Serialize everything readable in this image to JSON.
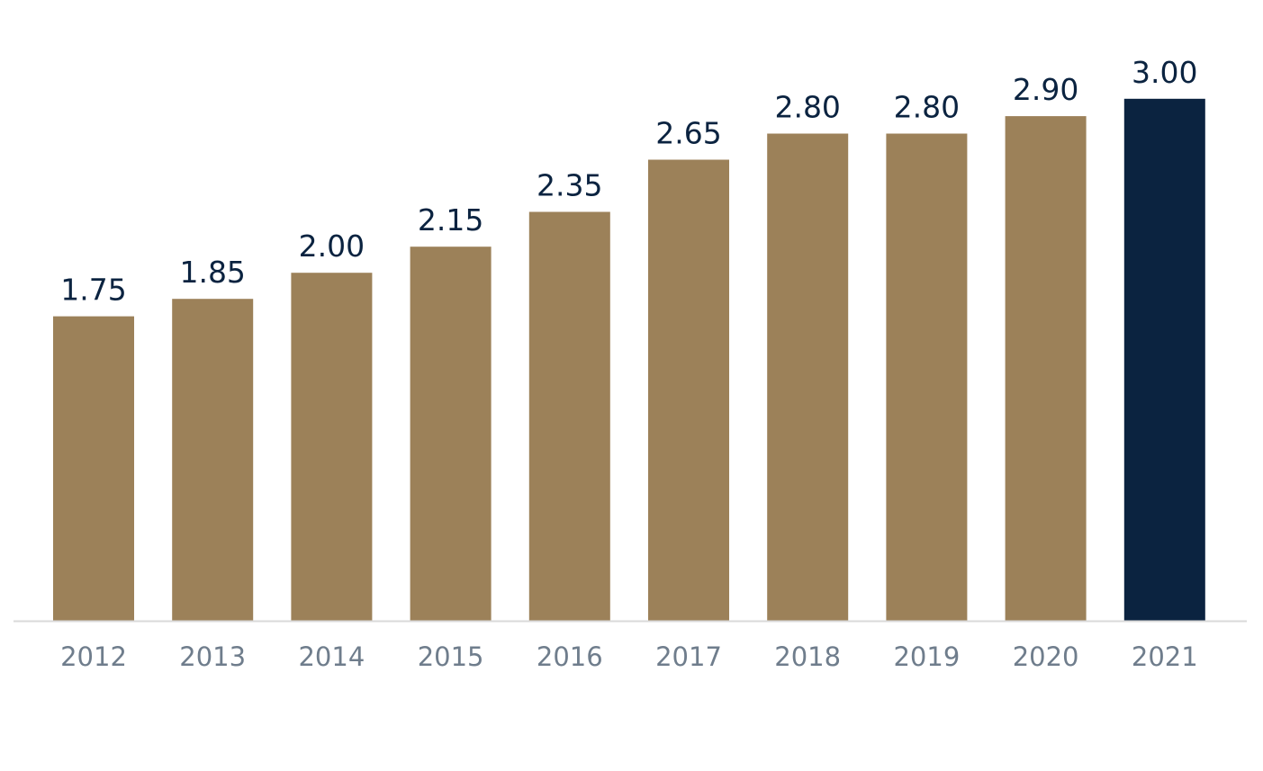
{
  "chart_data": {
    "type": "bar",
    "title": "",
    "xlabel": "",
    "ylabel": "",
    "categories": [
      "2012",
      "2013",
      "2014",
      "2015",
      "2016",
      "2017",
      "2018",
      "2019",
      "2020",
      "2021"
    ],
    "values": [
      1.75,
      1.85,
      2.0,
      2.15,
      2.35,
      2.65,
      2.8,
      2.8,
      2.9,
      3.0
    ],
    "value_labels": [
      "1.75",
      "1.85",
      "2.00",
      "2.15",
      "2.35",
      "2.65",
      "2.80",
      "2.80",
      "2.90",
      "3.00"
    ],
    "ylim": [
      0,
      3.25
    ],
    "grid": false,
    "legend": "none",
    "colors": {
      "bar": "#9c8159",
      "highlight_bar": "#0b2340",
      "value_label": "#0b2340",
      "tick_label": "#6f7d8c",
      "axis_line": "#d9d9d9"
    },
    "highlight_category": "2021"
  }
}
